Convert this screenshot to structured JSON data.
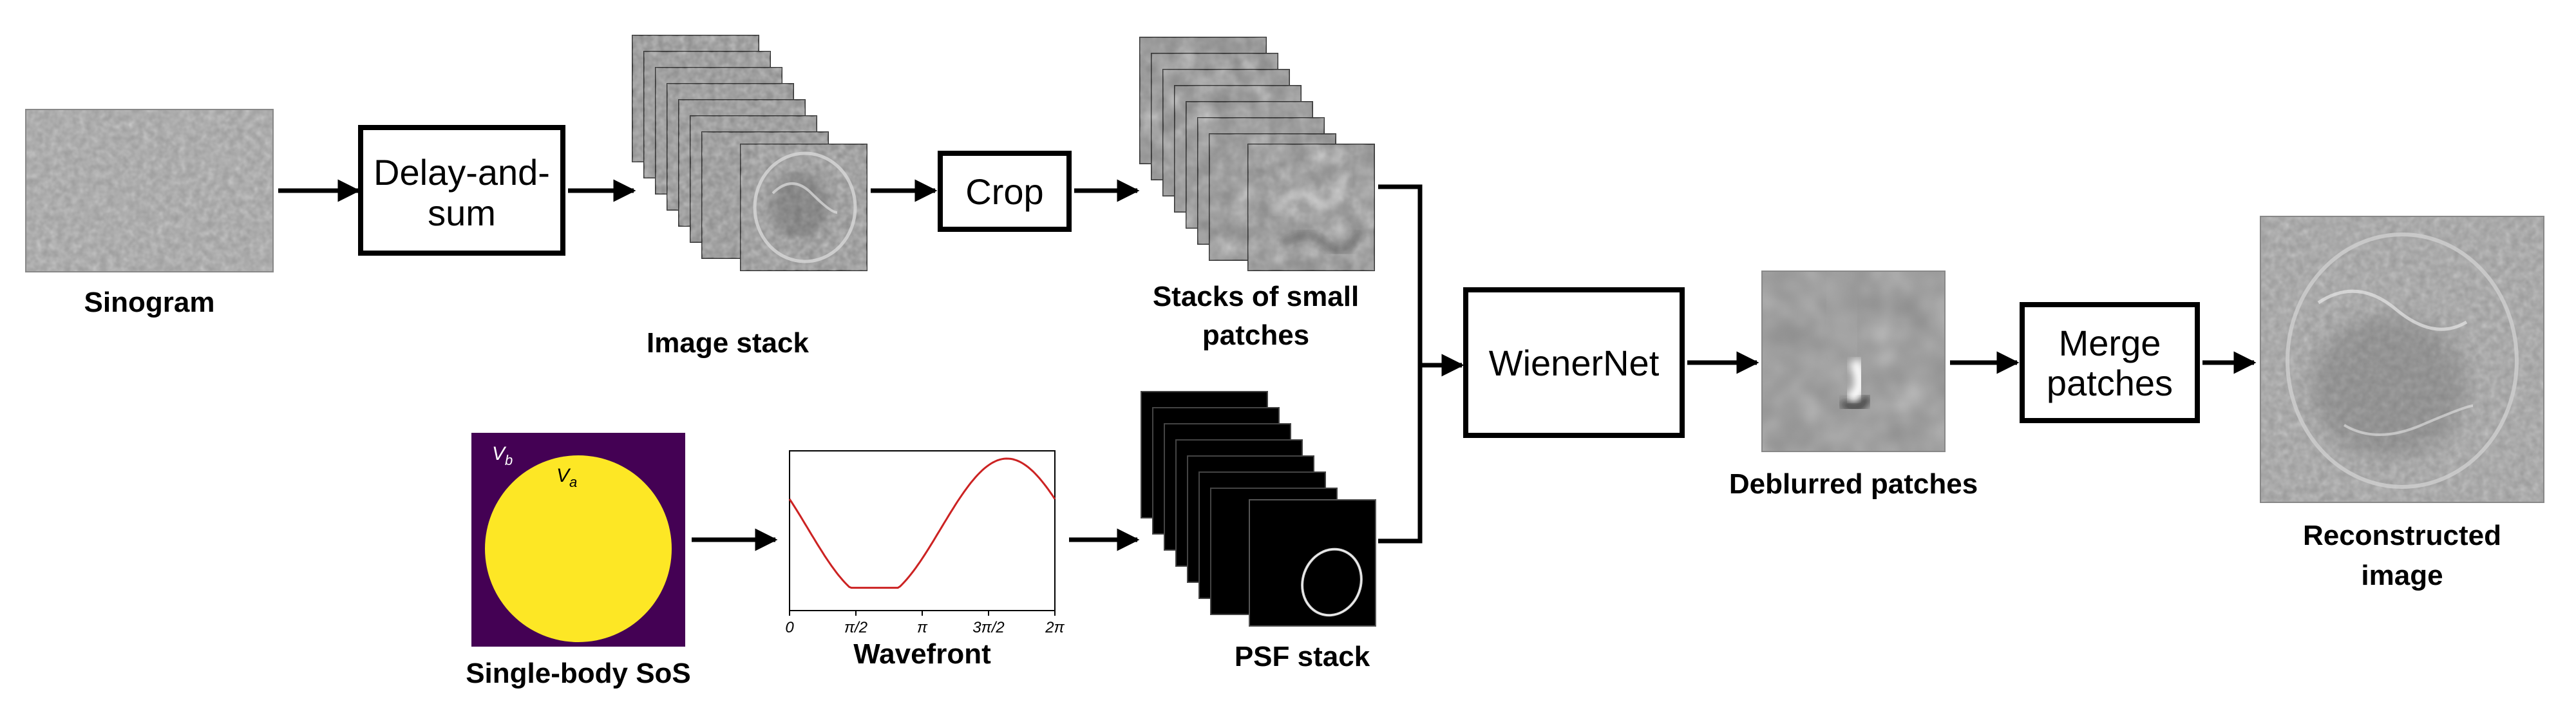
{
  "images": {
    "sinogram": "Sinogram",
    "image_stack": "Image stack",
    "small_patches_line1": "Stacks of small",
    "small_patches_line2": "patches",
    "single_body": "Single-body SoS",
    "wavefront": "Wavefront",
    "psf_stack": "PSF stack",
    "deblurred": "Deblurred patches",
    "reconstructed_line1": "Reconstructed",
    "reconstructed_line2": "image"
  },
  "blocks": {
    "delay_line1": "Delay-and-",
    "delay_line2": "sum",
    "crop": "Crop",
    "wienernet": "WienerNet",
    "merge_line1": "Merge",
    "merge_line2": "patches"
  },
  "sos": {
    "vb": "V",
    "vb_sub": "b",
    "va": "V",
    "va_sub": "a"
  },
  "wavefront_plot": {
    "xticks": [
      "0",
      "π/2",
      "π",
      "3π/2",
      "2π"
    ],
    "xlim": [
      0,
      6.2832
    ],
    "color": "#cc2222"
  },
  "colors": {
    "sos_background": "#440154",
    "sos_disk": "#fde725",
    "wave": "#cc2222"
  }
}
